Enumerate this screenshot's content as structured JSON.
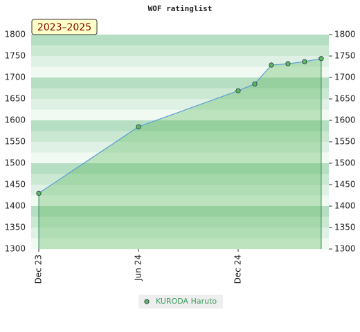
{
  "chart_data": {
    "type": "area",
    "title": "WOF ratinglist",
    "annotation": "2023–2025",
    "x": [
      0,
      6,
      12,
      13,
      14,
      15,
      16,
      17
    ],
    "xlim": [
      -0.46,
      17.46
    ],
    "xticks": [
      {
        "value": 0,
        "label": "Dec 23"
      },
      {
        "value": 6,
        "label": "Jun 24"
      },
      {
        "value": 12,
        "label": "Dec 24"
      }
    ],
    "series": [
      {
        "name": "KURODA Haruto",
        "color": "#5cb85c",
        "line_color": "#5b9bd5",
        "values": [
          1430,
          1585,
          1669,
          1685,
          1729,
          1732,
          1737,
          1744
        ]
      }
    ],
    "ylim": [
      1300,
      1800
    ],
    "yticks": [
      1300,
      1350,
      1400,
      1450,
      1500,
      1550,
      1600,
      1650,
      1700,
      1750,
      1800
    ],
    "grid": true,
    "legend": "bottom"
  }
}
